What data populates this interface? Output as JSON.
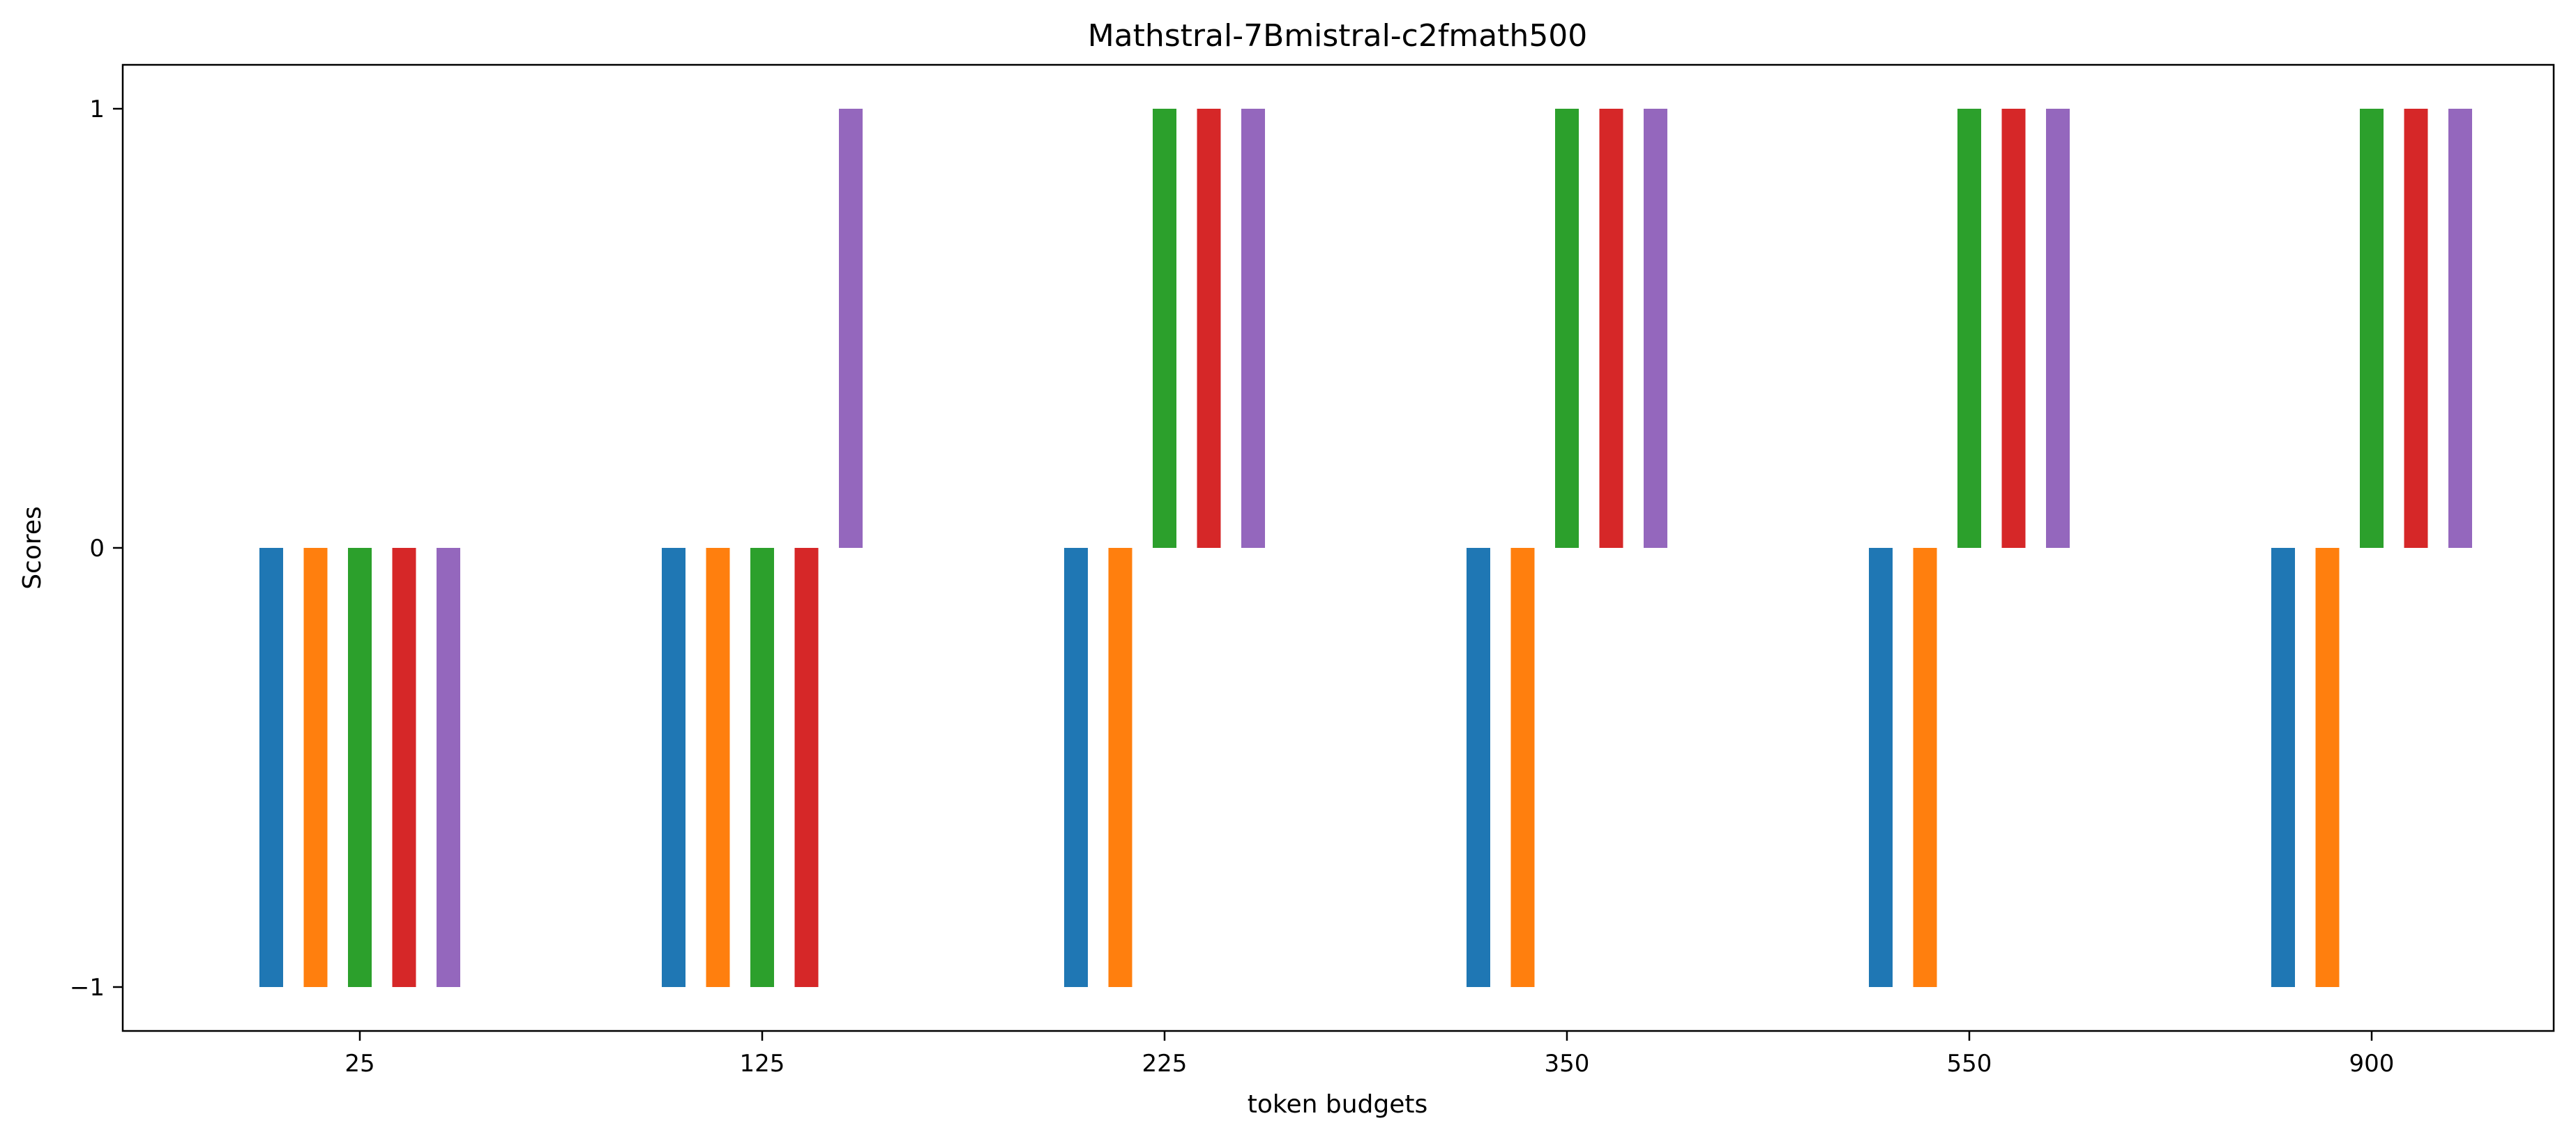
{
  "chart_data": {
    "type": "bar",
    "title": "Mathstral-7Bmistral-c2fmath500",
    "xlabel": "token budgets",
    "ylabel": "Scores",
    "categories": [
      "25",
      "125",
      "225",
      "350",
      "550",
      "900"
    ],
    "ylim": [
      -1.1,
      1.1
    ],
    "yticks": [
      -1,
      0,
      1
    ],
    "ytick_labels": [
      "−1",
      "0",
      "1"
    ],
    "grid": false,
    "legend": "none",
    "series": [
      {
        "color": "#1f77b4",
        "values": [
          -1,
          -1,
          -1,
          -1,
          -1,
          -1
        ]
      },
      {
        "color": "#ff7f0e",
        "values": [
          -1,
          -1,
          -1,
          -1,
          -1,
          -1
        ]
      },
      {
        "color": "#2ca02c",
        "values": [
          -1,
          -1,
          1,
          1,
          1,
          1
        ]
      },
      {
        "color": "#d62728",
        "values": [
          -1,
          -1,
          1,
          1,
          1,
          1
        ]
      },
      {
        "color": "#9467bd",
        "values": [
          -1,
          1,
          1,
          1,
          1,
          1
        ]
      }
    ]
  }
}
